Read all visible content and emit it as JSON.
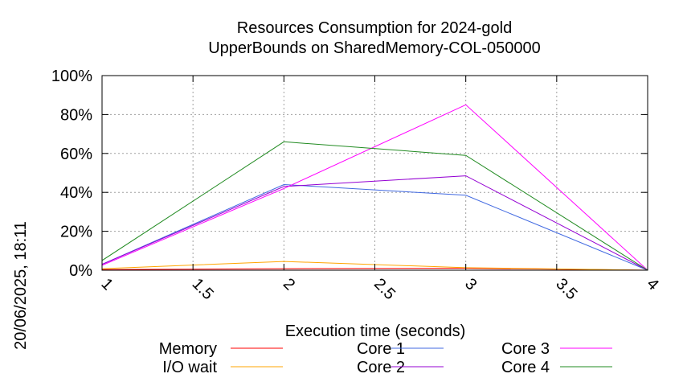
{
  "chart_data": {
    "type": "line",
    "title": "Resources Consumption for 2024-gold",
    "subtitle": "UpperBounds on SharedMemory-COL-050000",
    "xlabel": "Execution time (seconds)",
    "ylabel": "",
    "side_label": "20/06/2025, 18:11",
    "xlim": [
      1,
      4
    ],
    "ylim": [
      0,
      100
    ],
    "x_ticks": [
      1,
      1.5,
      2,
      2.5,
      3,
      3.5,
      4
    ],
    "x_tick_labels": [
      "1",
      "1.5",
      "2",
      "2.5",
      "3",
      "3.5",
      "4"
    ],
    "y_ticks": [
      0,
      20,
      40,
      60,
      80,
      100
    ],
    "y_tick_labels": [
      "0%",
      "20%",
      "40%",
      "60%",
      "80%",
      "100%"
    ],
    "grid": true,
    "legend_position": "bottom",
    "x": [
      1,
      2,
      3,
      4
    ],
    "series": [
      {
        "name": "Memory",
        "color": "#ff0000",
        "values": [
          0.3,
          0.8,
          1.0,
          0
        ]
      },
      {
        "name": "I/O wait",
        "color": "#ffa500",
        "values": [
          0.8,
          4.5,
          1.3,
          0
        ]
      },
      {
        "name": "Core 1",
        "color": "#4169e1",
        "values": [
          3,
          44,
          38.5,
          0
        ]
      },
      {
        "name": "Core 2",
        "color": "#9400d3",
        "values": [
          3,
          43,
          48.5,
          0
        ]
      },
      {
        "name": "Core 3",
        "color": "#ff00ff",
        "values": [
          2.5,
          42,
          85,
          0
        ]
      },
      {
        "name": "Core 4",
        "color": "#228b22",
        "values": [
          5,
          66,
          59,
          0
        ]
      }
    ]
  }
}
